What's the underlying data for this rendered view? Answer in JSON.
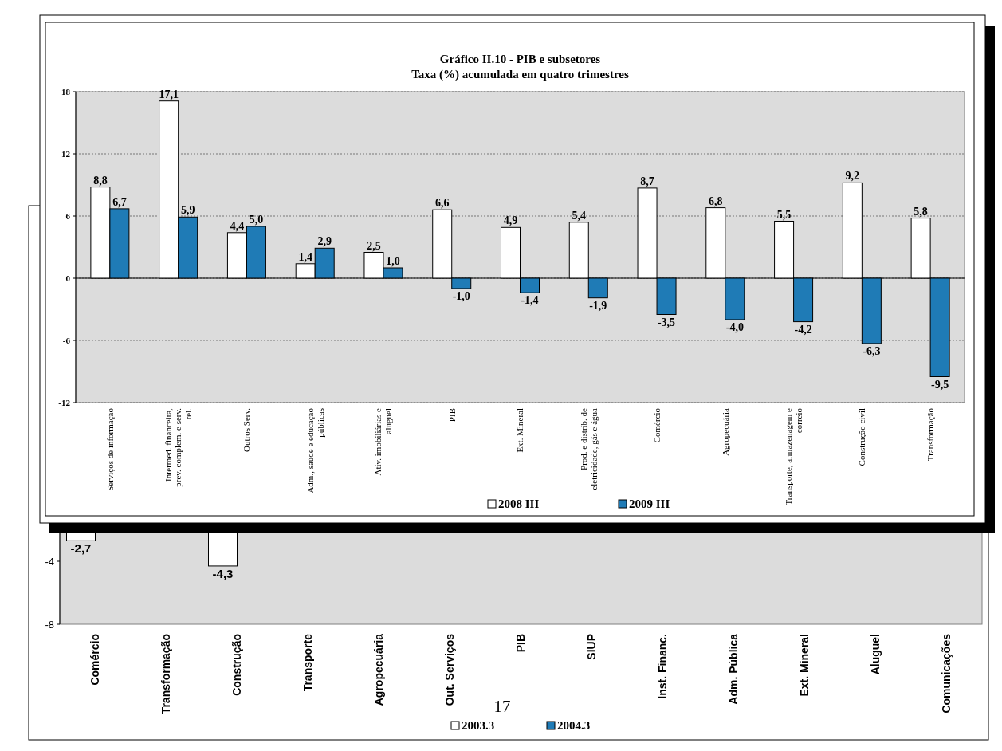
{
  "chart_data": [
    {
      "type": "bar",
      "title": "Gráfico II.10 - PIB  e subsetores",
      "subtitle": "Taxa (%) acumulada em quatro trimestres",
      "categories": [
        "Serviços de informação",
        "Intermed. financeira, prev. complem. e serv. rel.",
        "Outros Serv.",
        "Adm., saúde e educação públicas",
        "Ativ. imobiliárias e aluguel",
        "PIB",
        "Ext. Mineral",
        "Prod. e distrib. de eletricidade, gás e água",
        "Comércio",
        "Agropecuária",
        "Transporte, armazenagem e correio",
        "Construção civil",
        "Transformação"
      ],
      "series": [
        {
          "name": "2008 III",
          "color": "#ffffff",
          "values": [
            8.8,
            17.1,
            4.4,
            1.4,
            2.5,
            6.6,
            4.9,
            5.4,
            8.7,
            6.8,
            5.5,
            9.2,
            5.8
          ],
          "value_labels": [
            "8,8",
            "17,1",
            "4,4",
            "1,4",
            "2,5",
            "6,6",
            "4,9",
            "5,4",
            "8,7",
            "6,8",
            "5,5",
            "9,2",
            "5,8"
          ]
        },
        {
          "name": "2009 III",
          "color": "#1f7bb6",
          "values": [
            6.7,
            5.9,
            5.0,
            2.9,
            1.0,
            -1.0,
            -1.4,
            -1.9,
            -3.5,
            -4.0,
            -4.2,
            -6.3,
            -9.5
          ],
          "value_labels": [
            "6,7",
            "5,9",
            "5,0",
            "2,9",
            "1,0",
            "-1,0",
            "-1,4",
            "-1,9",
            "-3,5",
            "-4,0",
            "-4,2",
            "-6,3",
            "-9,5"
          ]
        }
      ],
      "ylim": [
        -12,
        18
      ],
      "yticks": [
        -12,
        -6,
        0,
        6,
        12,
        18
      ],
      "grid": "y",
      "legend": "bottom"
    },
    {
      "type": "bar",
      "categories": [
        "Comércio",
        "Transformação",
        "Construção",
        "Transporte",
        "Agropecuária",
        "Out. Serviços",
        "PIB",
        "SIUP",
        "Inst. Financ.",
        "Adm. Pública",
        "Ext. Mineral",
        "Aluguel",
        "Comunicações"
      ],
      "series": [
        {
          "name": "2003.3",
          "color": "#ffffff",
          "values": [
            -2.7,
            null,
            -4.3,
            null,
            null,
            null,
            null,
            null,
            null,
            null,
            null,
            null,
            null
          ],
          "value_labels": [
            "-2,7",
            null,
            "-4,3",
            null,
            null,
            null,
            null,
            null,
            null,
            null,
            null,
            null,
            null
          ]
        },
        {
          "name": "2004.3",
          "color": "#1f7bb6",
          "values": [
            null,
            null,
            null,
            null,
            null,
            null,
            null,
            null,
            null,
            null,
            null,
            null,
            null
          ]
        }
      ],
      "ylim": [
        -8,
        0
      ],
      "yticks": [
        {
          "value": -8,
          "label": "-8"
        },
        {
          "value": -4,
          "label": "-4"
        },
        {
          "value": 0,
          "label": null
        }
      ],
      "legend": "bottom",
      "annotations": [
        "17"
      ]
    }
  ]
}
